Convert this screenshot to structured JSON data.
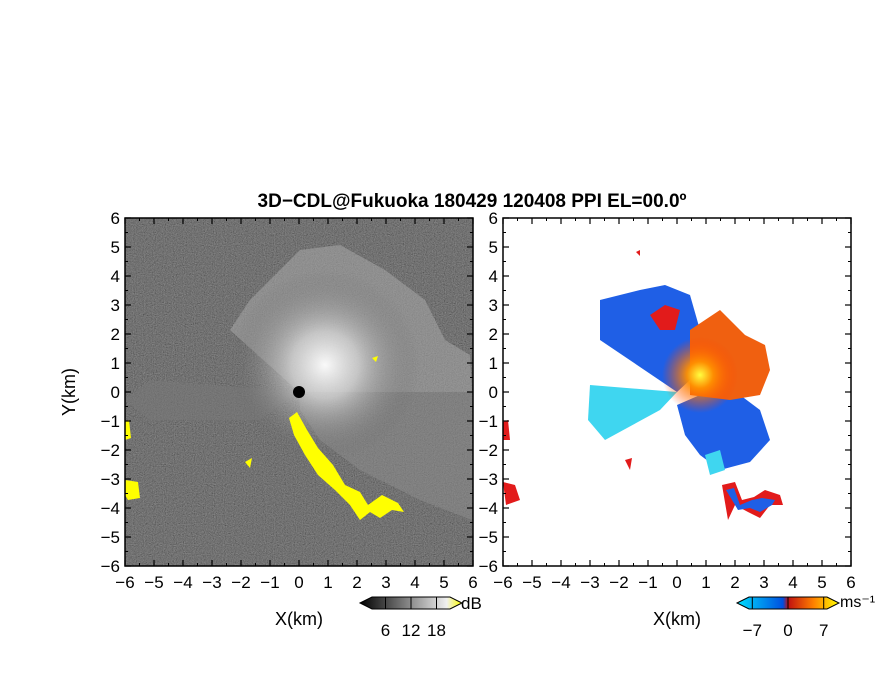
{
  "title": "3D−CDL@Fukuoka 180429 120408 PPI EL=00.0º",
  "chart_data": [
    {
      "type": "heatmap",
      "panel": "left",
      "quantity": "reflectivity / SNR",
      "xlabel": "X(km)",
      "ylabel": "Y(km)",
      "xlim": [
        -6,
        6
      ],
      "ylim": [
        -6,
        6
      ],
      "xticks": [
        "−6",
        "−5",
        "−4",
        "−3",
        "−2",
        "−1",
        "0",
        "1",
        "2",
        "3",
        "4",
        "5",
        "6"
      ],
      "yticks": [
        "6",
        "5",
        "4",
        "3",
        "2",
        "1",
        "0",
        "−1",
        "−2",
        "−3",
        "−4",
        "−5",
        "−6"
      ],
      "colorbar": {
        "unit": "dB",
        "ticks": [
          "6",
          "12",
          "18"
        ],
        "range": [
          0,
          24
        ],
        "colors": [
          "#000000",
          "#ffffff",
          "#ffff00"
        ]
      },
      "background_color": "#202020",
      "overlay_color": "#ffff00"
    },
    {
      "type": "heatmap",
      "panel": "right",
      "quantity": "Doppler velocity",
      "xlabel": "X(km)",
      "ylabel": "",
      "xlim": [
        -6,
        6
      ],
      "ylim": [
        -6,
        6
      ],
      "xticks": [
        "−6",
        "−5",
        "−4",
        "−3",
        "−2",
        "−1",
        "0",
        "1",
        "2",
        "3",
        "4",
        "5",
        "6"
      ],
      "yticks": [
        "6",
        "5",
        "4",
        "3",
        "2",
        "1",
        "0",
        "−1",
        "−2",
        "−3",
        "−4",
        "−5",
        "−6"
      ],
      "colorbar": {
        "unit": "ms⁻¹",
        "ticks": [
          "−7",
          "0",
          "7"
        ],
        "range": [
          -10,
          10
        ],
        "colors": [
          "#00e0ff",
          "#0050e0",
          "#e01010",
          "#ff8000",
          "#ffff00"
        ]
      },
      "background_color": "#ffffff"
    }
  ]
}
